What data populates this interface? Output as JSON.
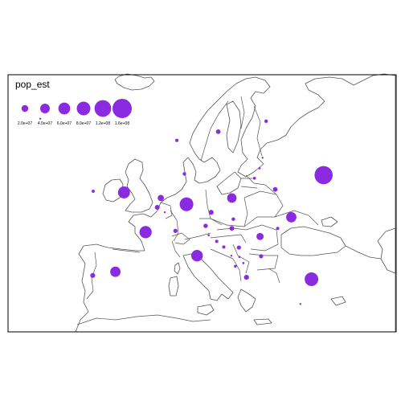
{
  "legend": {
    "title": "pop_est",
    "entries": [
      {
        "label": "2.0e+07",
        "value": 20000000
      },
      {
        "label": "4.0e+07",
        "value": 40000000
      },
      {
        "label": "6.0e+07",
        "value": 60000000
      },
      {
        "label": "8.0e+07",
        "value": 80000000
      },
      {
        "label": "1.2e+08",
        "value": 120000000
      },
      {
        "label": "1.6e+08",
        "value": 160000000
      }
    ]
  },
  "colors": {
    "bubble": "#8a2be2",
    "border": "#555555",
    "frame": "#000000"
  },
  "chart_data": {
    "type": "scatter",
    "variable": "pop_est",
    "region": "Europe",
    "size_scale": "area proportional to pop_est",
    "points": [
      {
        "lon": 37.6,
        "lat": 55.8,
        "pop_est": 142000000
      },
      {
        "lon": 10.4,
        "lat": 51.1,
        "pop_est": 80600000
      },
      {
        "lon": 35.2,
        "lat": 39.0,
        "pop_est": 80000000
      },
      {
        "lon": 2.3,
        "lat": 46.6,
        "pop_est": 64000000
      },
      {
        "lon": -2.0,
        "lat": 53.0,
        "pop_est": 62000000
      },
      {
        "lon": 12.5,
        "lat": 42.8,
        "pop_est": 58000000
      },
      {
        "lon": -3.7,
        "lat": 40.2,
        "pop_est": 46000000
      },
      {
        "lon": 31.2,
        "lat": 49.0,
        "pop_est": 45700000
      },
      {
        "lon": 19.4,
        "lat": 52.1,
        "pop_est": 38500000
      },
      {
        "lon": 25.0,
        "lat": 45.9,
        "pop_est": 22200000
      },
      {
        "lon": 5.3,
        "lat": 52.1,
        "pop_est": 16700000
      },
      {
        "lon": 22.3,
        "lat": 39.3,
        "pop_est": 10700000
      },
      {
        "lon": -8.2,
        "lat": 39.6,
        "pop_est": 10700000
      },
      {
        "lon": 15.3,
        "lat": 49.8,
        "pop_est": 10200000
      },
      {
        "lon": 4.6,
        "lat": 50.6,
        "pop_est": 10400000
      },
      {
        "lon": 19.4,
        "lat": 47.2,
        "pop_est": 9900000
      },
      {
        "lon": 28.0,
        "lat": 53.5,
        "pop_est": 9600000
      },
      {
        "lon": 16.7,
        "lat": 62.8,
        "pop_est": 9100000
      },
      {
        "lon": 14.2,
        "lat": 47.6,
        "pop_est": 8200000
      },
      {
        "lon": 8.2,
        "lat": 46.8,
        "pop_est": 7600000
      },
      {
        "lon": 25.2,
        "lat": 42.7,
        "pop_est": 7200000
      },
      {
        "lon": 20.8,
        "lat": 44.1,
        "pop_est": 7400000
      },
      {
        "lon": 10.0,
        "lat": 56.0,
        "pop_est": 5500000
      },
      {
        "lon": 26.2,
        "lat": 64.5,
        "pop_est": 5300000
      },
      {
        "lon": 19.7,
        "lat": 48.7,
        "pop_est": 5500000
      },
      {
        "lon": 8.5,
        "lat": 61.4,
        "pop_est": 4700000
      },
      {
        "lon": -8.1,
        "lat": 53.2,
        "pop_est": 4200000
      },
      {
        "lon": 16.4,
        "lat": 45.1,
        "pop_est": 4500000
      },
      {
        "lon": 17.8,
        "lat": 44.2,
        "pop_est": 4600000
      },
      {
        "lon": 28.5,
        "lat": 47.2,
        "pop_est": 4300000
      },
      {
        "lon": 23.9,
        "lat": 55.3,
        "pop_est": 3600000
      },
      {
        "lon": 20.1,
        "lat": 41.1,
        "pop_est": 3600000
      },
      {
        "lon": 21.7,
        "lat": 41.6,
        "pop_est": 2100000
      },
      {
        "lon": 14.8,
        "lat": 46.1,
        "pop_est": 2000000
      },
      {
        "lon": 24.9,
        "lat": 56.9,
        "pop_est": 2200000
      },
      {
        "lon": 25.5,
        "lat": 58.6,
        "pop_est": 1300000
      },
      {
        "lon": 33.0,
        "lat": 35.0,
        "pop_est": 1100000
      },
      {
        "lon": 19.3,
        "lat": 42.8,
        "pop_est": 670000
      },
      {
        "lon": 6.1,
        "lat": 49.8,
        "pop_est": 500000
      },
      {
        "lon": -18.6,
        "lat": 64.9,
        "pop_est": 310000
      },
      {
        "lon": 20.9,
        "lat": 42.6,
        "pop_est": 1800000
      }
    ]
  }
}
